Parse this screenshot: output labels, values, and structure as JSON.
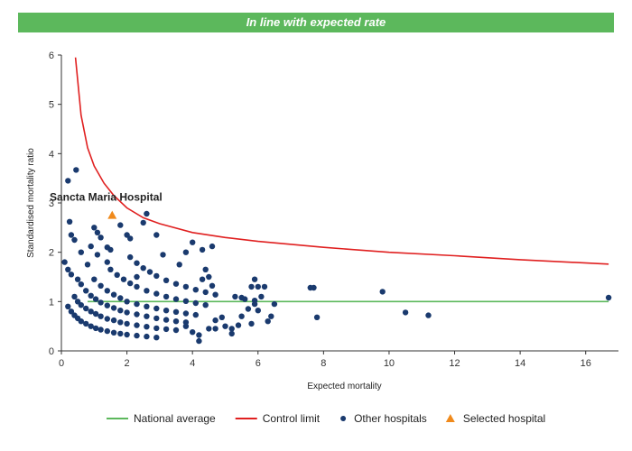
{
  "banner": {
    "text": "In line with expected rate",
    "color": "#5cb85c"
  },
  "chart_data": {
    "type": "scatter",
    "title": "In line with expected rate",
    "xlabel": "Expected mortality",
    "ylabel": "Standardised mortality ratio",
    "xlim": [
      0,
      17
    ],
    "ylim": [
      0,
      6
    ],
    "xticks": [
      0,
      2,
      4,
      6,
      8,
      10,
      12,
      14,
      16
    ],
    "yticks": [
      0,
      1,
      2,
      3,
      4,
      5,
      6
    ],
    "grid": false,
    "legend_placement": "bottom",
    "annotation": {
      "text": "Sancta Maria Hospital",
      "x": 1.55,
      "y": 2.75
    },
    "series": [
      {
        "name": "National average",
        "kind": "line",
        "color": "#5cb85c",
        "points": [
          [
            0.8,
            1
          ],
          [
            16.7,
            1
          ]
        ]
      },
      {
        "name": "Control limit",
        "kind": "line",
        "color": "#e02020",
        "points": [
          [
            0.43,
            5.95
          ],
          [
            0.6,
            4.78
          ],
          [
            0.8,
            4.12
          ],
          [
            1.0,
            3.75
          ],
          [
            1.3,
            3.4
          ],
          [
            1.6,
            3.15
          ],
          [
            2.0,
            2.9
          ],
          [
            2.5,
            2.7
          ],
          [
            3.0,
            2.58
          ],
          [
            4.0,
            2.4
          ],
          [
            5.0,
            2.3
          ],
          [
            6.0,
            2.22
          ],
          [
            8.0,
            2.1
          ],
          [
            10.0,
            2.0
          ],
          [
            12.0,
            1.93
          ],
          [
            14.0,
            1.85
          ],
          [
            16.7,
            1.76
          ]
        ]
      },
      {
        "name": "Other hospitals",
        "kind": "points",
        "color": "#1a3a6e",
        "points": [
          [
            0.2,
            0.9
          ],
          [
            0.3,
            0.8
          ],
          [
            0.4,
            0.72
          ],
          [
            0.5,
            0.66
          ],
          [
            0.6,
            0.6
          ],
          [
            0.75,
            0.55
          ],
          [
            0.9,
            0.5
          ],
          [
            1.05,
            0.46
          ],
          [
            1.2,
            0.43
          ],
          [
            1.4,
            0.4
          ],
          [
            1.6,
            0.37
          ],
          [
            1.8,
            0.35
          ],
          [
            2.0,
            0.33
          ],
          [
            2.3,
            0.31
          ],
          [
            2.6,
            0.29
          ],
          [
            2.9,
            0.27
          ],
          [
            0.4,
            1.1
          ],
          [
            0.5,
            1.0
          ],
          [
            0.6,
            0.93
          ],
          [
            0.75,
            0.86
          ],
          [
            0.9,
            0.8
          ],
          [
            1.05,
            0.75
          ],
          [
            1.2,
            0.7
          ],
          [
            1.4,
            0.65
          ],
          [
            1.6,
            0.62
          ],
          [
            1.8,
            0.58
          ],
          [
            2.0,
            0.55
          ],
          [
            2.3,
            0.52
          ],
          [
            2.6,
            0.49
          ],
          [
            2.9,
            0.46
          ],
          [
            3.2,
            0.44
          ],
          [
            0.6,
            1.35
          ],
          [
            0.75,
            1.22
          ],
          [
            0.9,
            1.12
          ],
          [
            1.05,
            1.05
          ],
          [
            1.2,
            0.98
          ],
          [
            1.4,
            0.92
          ],
          [
            1.6,
            0.87
          ],
          [
            1.8,
            0.82
          ],
          [
            2.0,
            0.78
          ],
          [
            2.3,
            0.74
          ],
          [
            2.6,
            0.7
          ],
          [
            2.9,
            0.66
          ],
          [
            3.2,
            0.63
          ],
          [
            3.5,
            0.6
          ],
          [
            3.8,
            0.58
          ],
          [
            1.0,
            1.45
          ],
          [
            1.2,
            1.32
          ],
          [
            1.4,
            1.22
          ],
          [
            1.6,
            1.14
          ],
          [
            1.8,
            1.07
          ],
          [
            2.0,
            1.0
          ],
          [
            2.3,
            0.95
          ],
          [
            2.6,
            0.9
          ],
          [
            2.9,
            0.86
          ],
          [
            3.2,
            0.82
          ],
          [
            3.5,
            0.79
          ],
          [
            3.8,
            0.76
          ],
          [
            4.1,
            0.73
          ],
          [
            1.5,
            1.65
          ],
          [
            1.7,
            1.54
          ],
          [
            1.9,
            1.45
          ],
          [
            2.1,
            1.37
          ],
          [
            2.3,
            1.3
          ],
          [
            2.6,
            1.22
          ],
          [
            2.9,
            1.16
          ],
          [
            3.2,
            1.1
          ],
          [
            3.5,
            1.05
          ],
          [
            3.8,
            1.01
          ],
          [
            4.1,
            0.97
          ],
          [
            4.4,
            0.93
          ],
          [
            2.1,
            1.9
          ],
          [
            2.3,
            1.78
          ],
          [
            2.5,
            1.68
          ],
          [
            2.7,
            1.6
          ],
          [
            2.9,
            1.52
          ],
          [
            3.2,
            1.43
          ],
          [
            3.5,
            1.36
          ],
          [
            3.8,
            1.3
          ],
          [
            4.1,
            1.24
          ],
          [
            4.4,
            1.19
          ],
          [
            4.7,
            1.14
          ],
          [
            0.2,
            3.45
          ],
          [
            0.45,
            3.67
          ],
          [
            0.25,
            2.62
          ],
          [
            0.3,
            2.35
          ],
          [
            0.4,
            2.25
          ],
          [
            0.6,
            2.0
          ],
          [
            0.9,
            2.12
          ],
          [
            1.0,
            2.5
          ],
          [
            1.1,
            2.4
          ],
          [
            1.2,
            2.3
          ],
          [
            1.4,
            2.1
          ],
          [
            1.5,
            2.05
          ],
          [
            1.8,
            2.55
          ],
          [
            2.0,
            2.35
          ],
          [
            2.1,
            2.28
          ],
          [
            2.5,
            2.6
          ],
          [
            2.6,
            2.78
          ],
          [
            2.9,
            2.35
          ],
          [
            0.1,
            1.8
          ],
          [
            0.2,
            1.65
          ],
          [
            0.3,
            1.55
          ],
          [
            0.5,
            1.45
          ],
          [
            0.8,
            1.75
          ],
          [
            1.1,
            1.95
          ],
          [
            1.4,
            1.8
          ],
          [
            2.3,
            1.5
          ],
          [
            3.1,
            1.95
          ],
          [
            3.6,
            1.75
          ],
          [
            3.8,
            2.0
          ],
          [
            4.0,
            2.2
          ],
          [
            4.3,
            2.05
          ],
          [
            4.6,
            2.12
          ],
          [
            4.4,
            1.65
          ],
          [
            4.5,
            1.5
          ],
          [
            4.6,
            1.32
          ],
          [
            4.3,
            1.45
          ],
          [
            3.5,
            0.42
          ],
          [
            3.8,
            0.5
          ],
          [
            4.0,
            0.38
          ],
          [
            4.2,
            0.32
          ],
          [
            4.5,
            0.45
          ],
          [
            4.2,
            0.2
          ],
          [
            4.7,
            0.62
          ],
          [
            5.0,
            0.5
          ],
          [
            5.2,
            0.45
          ],
          [
            5.4,
            0.52
          ],
          [
            5.8,
            0.55
          ],
          [
            5.5,
            0.7
          ],
          [
            5.7,
            0.85
          ],
          [
            5.9,
            0.95
          ],
          [
            6.0,
            0.82
          ],
          [
            6.3,
            0.6
          ],
          [
            6.5,
            0.95
          ],
          [
            6.4,
            0.7
          ],
          [
            5.6,
            1.05
          ],
          [
            5.9,
            1.02
          ],
          [
            6.1,
            1.1
          ],
          [
            5.3,
            1.1
          ],
          [
            5.8,
            1.3
          ],
          [
            6.0,
            1.3
          ],
          [
            6.2,
            1.3
          ],
          [
            5.9,
            1.45
          ],
          [
            5.5,
            1.08
          ],
          [
            4.7,
            0.45
          ],
          [
            4.9,
            0.68
          ],
          [
            5.2,
            0.35
          ],
          [
            7.6,
            1.28
          ],
          [
            7.7,
            1.28
          ],
          [
            7.8,
            0.68
          ],
          [
            9.8,
            1.2
          ],
          [
            10.5,
            0.78
          ],
          [
            11.2,
            0.72
          ],
          [
            16.7,
            1.08
          ]
        ]
      },
      {
        "name": "Selected hospital",
        "kind": "marker",
        "color": "#f08a1c",
        "points": [
          [
            1.55,
            2.75
          ]
        ]
      }
    ]
  }
}
